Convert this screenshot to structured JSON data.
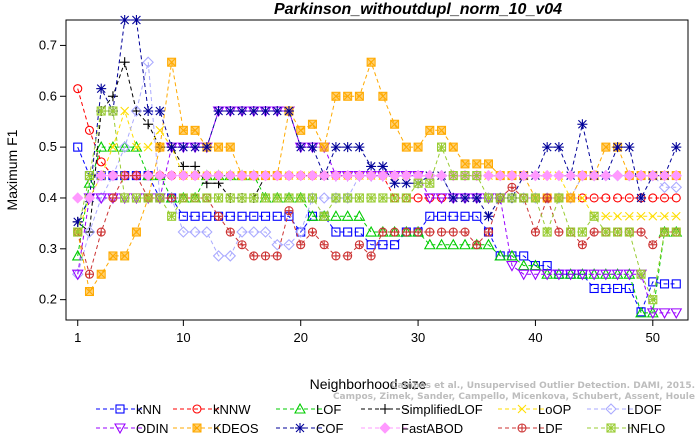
{
  "chart_data": {
    "type": "line",
    "title": "Parkinson_withoutdupl_norm_10_v04",
    "xlabel": "Neighborhood size",
    "ylabel": "Maximum F1",
    "xlim": [
      0,
      53
    ],
    "ylim": [
      0.16,
      0.75
    ],
    "xticks": [
      "1",
      "10",
      "20",
      "30",
      "40",
      "50"
    ],
    "yticks": [
      "0.2",
      "0.3",
      "0.4",
      "0.5",
      "0.6",
      "0.7"
    ],
    "grid": false,
    "legend_position": "bottom",
    "credit_lines": [
      "Campos et al., Unsupervised Outlier Detection. DAMI, 2015.",
      "Campos, Zimek, Sander, Campello, Micenkova, Schubert, Assent, Houle"
    ],
    "x": [
      1,
      2,
      3,
      4,
      5,
      6,
      7,
      8,
      9,
      10,
      11,
      12,
      13,
      14,
      15,
      16,
      17,
      18,
      19,
      20,
      21,
      22,
      23,
      24,
      25,
      26,
      27,
      28,
      29,
      30,
      31,
      32,
      33,
      34,
      35,
      36,
      37,
      38,
      39,
      40,
      41,
      42,
      43,
      44,
      45,
      46,
      47,
      48,
      49,
      50,
      51,
      52
    ],
    "series": [
      {
        "name": "kNN",
        "color": "#0000ff",
        "marker": "square",
        "values": [
          0.5,
          0.444,
          0.444,
          0.444,
          0.444,
          0.444,
          0.444,
          0.4,
          0.4,
          0.364,
          0.364,
          0.364,
          0.364,
          0.364,
          0.364,
          0.364,
          0.364,
          0.364,
          0.364,
          0.333,
          0.364,
          0.364,
          0.333,
          0.333,
          0.333,
          0.308,
          0.308,
          0.308,
          0.333,
          0.333,
          0.364,
          0.364,
          0.364,
          0.364,
          0.364,
          0.333,
          0.286,
          0.286,
          0.286,
          0.267,
          0.267,
          0.25,
          0.25,
          0.25,
          0.222,
          0.222,
          0.222,
          0.222,
          0.176,
          0.235,
          0.231,
          0.231
        ]
      },
      {
        "name": "kNNW",
        "color": "#ff0000",
        "marker": "circle",
        "values": [
          0.615,
          0.533,
          0.471,
          0.444,
          0.444,
          0.444,
          0.444,
          0.444,
          0.444,
          0.444,
          0.444,
          0.444,
          0.444,
          0.444,
          0.444,
          0.444,
          0.444,
          0.444,
          0.444,
          0.444,
          0.444,
          0.444,
          0.444,
          0.444,
          0.444,
          0.444,
          0.444,
          0.4,
          0.4,
          0.4,
          0.4,
          0.4,
          0.4,
          0.4,
          0.4,
          0.4,
          0.4,
          0.4,
          0.4,
          0.4,
          0.4,
          0.4,
          0.4,
          0.4,
          0.4,
          0.4,
          0.4,
          0.4,
          0.4,
          0.4,
          0.4,
          0.4
        ]
      },
      {
        "name": "LOF",
        "color": "#00cc00",
        "marker": "triangle-up",
        "values": [
          0.286,
          0.429,
          0.5,
          0.5,
          0.5,
          0.5,
          0.444,
          0.444,
          0.4,
          0.4,
          0.4,
          0.444,
          0.444,
          0.444,
          0.444,
          0.444,
          0.4,
          0.4,
          0.4,
          0.4,
          0.364,
          0.364,
          0.364,
          0.364,
          0.364,
          0.333,
          0.333,
          0.333,
          0.333,
          0.333,
          0.308,
          0.308,
          0.308,
          0.308,
          0.308,
          0.308,
          0.286,
          0.286,
          0.267,
          0.267,
          0.25,
          0.25,
          0.25,
          0.25,
          0.25,
          0.25,
          0.25,
          0.25,
          0.174,
          0.174,
          0.333,
          0.333
        ]
      },
      {
        "name": "SimplifiedLOF",
        "color": "#000000",
        "marker": "plus",
        "values": [
          0.353,
          0.333,
          0.571,
          0.6,
          0.667,
          0.571,
          0.545,
          0.5,
          0.5,
          0.462,
          0.462,
          0.429,
          0.429,
          0.4,
          0.4,
          0.4,
          0.444,
          0.444,
          0.444,
          0.444,
          0.444,
          0.444,
          0.444,
          0.444,
          0.444,
          0.444,
          0.444,
          0.444,
          0.444,
          0.444,
          0.444,
          0.444,
          0.444,
          0.444,
          0.444,
          0.444,
          0.444,
          0.444,
          0.444,
          0.444,
          0.444,
          0.444,
          0.444,
          0.444,
          0.444,
          0.444,
          0.444,
          0.444,
          0.444,
          0.444,
          0.444,
          0.444
        ]
      },
      {
        "name": "LoOP",
        "color": "#ffdd00",
        "marker": "x",
        "values": [
          0.333,
          0.4,
          0.444,
          0.5,
          0.571,
          0.5,
          0.5,
          0.533,
          0.5,
          0.444,
          0.444,
          0.444,
          0.444,
          0.444,
          0.444,
          0.444,
          0.444,
          0.444,
          0.444,
          0.444,
          0.444,
          0.444,
          0.444,
          0.444,
          0.444,
          0.444,
          0.444,
          0.444,
          0.444,
          0.444,
          0.444,
          0.444,
          0.444,
          0.444,
          0.444,
          0.444,
          0.444,
          0.444,
          0.444,
          0.444,
          0.444,
          0.444,
          0.4,
          0.4,
          0.364,
          0.364,
          0.364,
          0.364,
          0.364,
          0.364,
          0.364,
          0.364
        ]
      },
      {
        "name": "LDOF",
        "color": "#aaaaff",
        "marker": "diamond",
        "values": [
          0.25,
          0.333,
          0.4,
          0.444,
          0.5,
          0.571,
          0.667,
          0.4,
          0.4,
          0.333,
          0.333,
          0.333,
          0.286,
          0.286,
          0.333,
          0.333,
          0.333,
          0.308,
          0.308,
          0.333,
          0.4,
          0.4,
          0.4,
          0.4,
          0.444,
          0.444,
          0.444,
          0.444,
          0.444,
          0.444,
          0.444,
          0.444,
          0.4,
          0.4,
          0.4,
          0.4,
          0.4,
          0.4,
          0.4,
          0.4,
          0.4,
          0.4,
          0.4,
          0.444,
          0.444,
          0.444,
          0.444,
          0.444,
          0.444,
          0.444,
          0.421,
          0.421
        ]
      },
      {
        "name": "ODIN",
        "color": "#9900ff",
        "marker": "triangle-down",
        "values": [
          0.25,
          0.4,
          0.4,
          0.4,
          0.4,
          0.4,
          0.4,
          0.4,
          0.5,
          0.5,
          0.5,
          0.5,
          0.571,
          0.571,
          0.571,
          0.571,
          0.571,
          0.571,
          0.571,
          0.5,
          0.5,
          0.5,
          0.444,
          0.444,
          0.444,
          0.444,
          0.444,
          0.444,
          0.444,
          0.444,
          0.4,
          0.4,
          0.4,
          0.4,
          0.4,
          0.4,
          0.4,
          0.267,
          0.25,
          0.25,
          0.25,
          0.25,
          0.25,
          0.25,
          0.25,
          0.25,
          0.25,
          0.25,
          0.25,
          0.174,
          0.174,
          0.174
        ]
      },
      {
        "name": "KDEOS",
        "color": "#ffaa00",
        "marker": "square-x",
        "values": [
          0.333,
          0.216,
          0.25,
          0.286,
          0.286,
          0.333,
          0.4,
          0.5,
          0.667,
          0.533,
          0.533,
          0.5,
          0.5,
          0.5,
          0.444,
          0.444,
          0.444,
          0.444,
          0.571,
          0.533,
          0.545,
          0.5,
          0.6,
          0.6,
          0.6,
          0.667,
          0.6,
          0.545,
          0.5,
          0.5,
          0.533,
          0.533,
          0.5,
          0.467,
          0.467,
          0.467,
          0.444,
          0.444,
          0.444,
          0.4,
          0.4,
          0.4,
          0.4,
          0.444,
          0.444,
          0.5,
          0.5,
          0.444,
          0.444,
          0.444,
          0.444,
          0.444
        ]
      },
      {
        "name": "COF",
        "color": "#000099",
        "marker": "star",
        "values": [
          0.353,
          0.4,
          0.615,
          0.571,
          0.75,
          0.75,
          0.571,
          0.571,
          0.5,
          0.5,
          0.5,
          0.5,
          0.571,
          0.571,
          0.571,
          0.571,
          0.571,
          0.571,
          0.571,
          0.5,
          0.5,
          0.444,
          0.5,
          0.5,
          0.5,
          0.462,
          0.462,
          0.429,
          0.429,
          0.429,
          0.444,
          0.444,
          0.4,
          0.4,
          0.4,
          0.364,
          0.4,
          0.4,
          0.444,
          0.444,
          0.5,
          0.5,
          0.444,
          0.545,
          0.444,
          0.444,
          0.5,
          0.5,
          0.4,
          0.444,
          0.444,
          0.5
        ]
      },
      {
        "name": "FastABOD",
        "color": "#ff99ff",
        "marker": "diamond-filled",
        "values": [
          0.4,
          0.4,
          0.444,
          0.444,
          0.444,
          0.444,
          0.444,
          0.444,
          0.444,
          0.444,
          0.444,
          0.444,
          0.444,
          0.444,
          0.444,
          0.444,
          0.444,
          0.444,
          0.444,
          0.444,
          0.444,
          0.444,
          0.444,
          0.444,
          0.444,
          0.444,
          0.444,
          0.444,
          0.444,
          0.444,
          0.444,
          0.444,
          0.444,
          0.444,
          0.444,
          0.444,
          0.444,
          0.444,
          0.444,
          0.444,
          0.444,
          0.444,
          0.444,
          0.444,
          0.444,
          0.444,
          0.444,
          0.444,
          0.444,
          0.444,
          0.444,
          0.444
        ]
      },
      {
        "name": "LDF",
        "color": "#cc3333",
        "marker": "circle-plus",
        "values": [
          0.333,
          0.25,
          0.333,
          0.4,
          0.444,
          0.444,
          0.4,
          0.4,
          0.4,
          0.4,
          0.4,
          0.4,
          0.364,
          0.333,
          0.308,
          0.286,
          0.286,
          0.286,
          0.375,
          0.308,
          0.333,
          0.308,
          0.286,
          0.286,
          0.308,
          0.286,
          0.333,
          0.333,
          0.333,
          0.333,
          0.333,
          0.333,
          0.333,
          0.333,
          0.308,
          0.333,
          0.4,
          0.421,
          0.4,
          0.333,
          0.4,
          0.333,
          0.333,
          0.308,
          0.333,
          0.333,
          0.333,
          0.333,
          0.333,
          0.308,
          0.333,
          0.333
        ]
      },
      {
        "name": "INFLO",
        "color": "#99cc33",
        "marker": "star-square",
        "values": [
          0.333,
          0.444,
          0.571,
          0.571,
          0.4,
          0.4,
          0.4,
          0.4,
          0.364,
          0.4,
          0.4,
          0.4,
          0.4,
          0.4,
          0.4,
          0.4,
          0.4,
          0.4,
          0.4,
          0.4,
          0.4,
          0.364,
          0.4,
          0.4,
          0.4,
          0.4,
          0.4,
          0.4,
          0.4,
          0.429,
          0.429,
          0.5,
          0.444,
          0.444,
          0.444,
          0.4,
          0.4,
          0.4,
          0.4,
          0.4,
          0.333,
          0.4,
          0.333,
          0.333,
          0.364,
          0.333,
          0.333,
          0.333,
          0.25,
          0.2,
          0.333,
          0.333
        ]
      }
    ],
    "legend": {
      "rows": [
        [
          "kNN",
          "kNNW",
          "LOF",
          "SimplifiedLOF",
          "LoOP",
          "LDOF"
        ],
        [
          "ODIN",
          "KDEOS",
          "COF",
          "FastABOD",
          "LDF",
          "INFLO"
        ]
      ]
    }
  }
}
